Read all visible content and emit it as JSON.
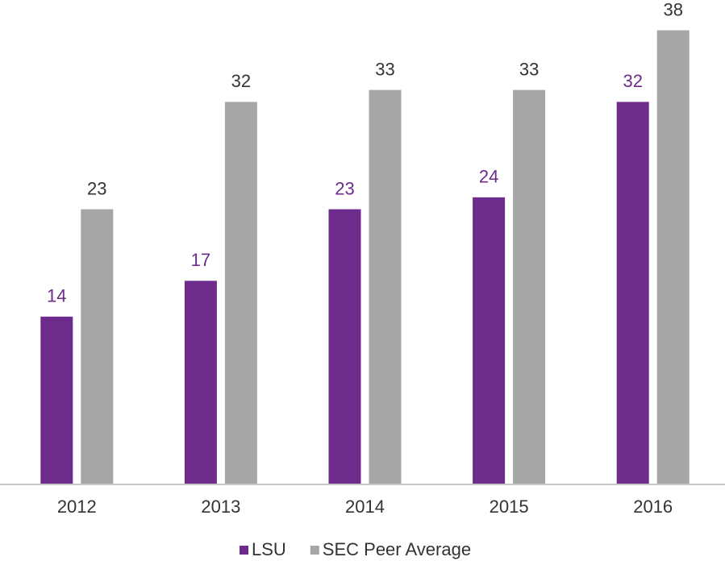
{
  "chart_data": {
    "type": "bar",
    "categories": [
      "2012",
      "2013",
      "2014",
      "2015",
      "2016"
    ],
    "series": [
      {
        "name": "LSU",
        "color": "#6d2b8b",
        "label_color": "#6d2b8b",
        "values": [
          14,
          17,
          23,
          24,
          32
        ]
      },
      {
        "name": "SEC Peer Average",
        "color": "#a6a6a6",
        "label_color": "#333333",
        "values": [
          23,
          32,
          33,
          33,
          38
        ]
      }
    ],
    "ylim": [
      0,
      40
    ]
  }
}
